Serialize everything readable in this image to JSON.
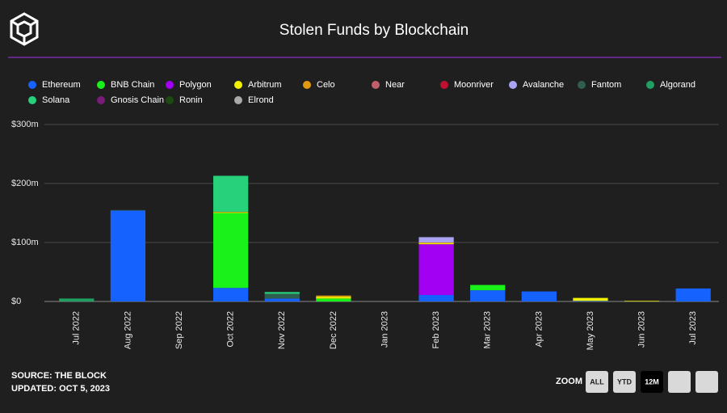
{
  "chart_data": {
    "type": "bar",
    "stacked": true,
    "title": "Stolen Funds by Blockchain",
    "categories": [
      "Jul 2022",
      "Aug 2022",
      "Sep 2022",
      "Oct 2022",
      "Nov 2022",
      "Dec 2022",
      "Jan 2023",
      "Feb 2023",
      "Mar 2023",
      "Apr 2023",
      "May 2023",
      "Jun 2023",
      "Jul 2023"
    ],
    "series": [
      {
        "name": "Ethereum",
        "color": "#1662ff",
        "values": [
          0,
          154,
          0,
          23,
          5,
          0,
          0,
          11,
          19,
          17,
          1,
          0,
          22
        ]
      },
      {
        "name": "BNB Chain",
        "color": "#1af01a",
        "values": [
          0,
          0,
          0,
          127,
          0,
          5,
          0,
          0,
          9,
          0,
          0,
          0,
          0
        ]
      },
      {
        "name": "Polygon",
        "color": "#a200f2",
        "values": [
          0,
          0,
          0,
          0,
          0,
          0,
          0,
          86,
          0,
          0,
          0,
          0,
          0
        ]
      },
      {
        "name": "Arbitrum",
        "color": "#f2f200",
        "values": [
          0,
          0,
          0,
          1,
          0,
          3,
          0,
          2,
          0,
          0,
          5,
          1,
          0
        ]
      },
      {
        "name": "Celo",
        "color": "#e09a10",
        "values": [
          0,
          0,
          0,
          1,
          0,
          2,
          0,
          1,
          0,
          0,
          0,
          0,
          0
        ]
      },
      {
        "name": "Near",
        "color": "#c25d6b",
        "values": [
          0,
          0,
          0,
          0,
          0,
          0,
          0,
          0,
          0,
          0,
          0,
          0,
          0
        ]
      },
      {
        "name": "Moonriver",
        "color": "#c01030",
        "values": [
          0,
          0,
          0,
          0,
          0,
          0,
          0,
          0,
          0,
          0,
          0,
          0,
          0
        ]
      },
      {
        "name": "Avalanche",
        "color": "#aaa2f2",
        "values": [
          0,
          0,
          0,
          0,
          0,
          0,
          0,
          9,
          0,
          0,
          0,
          0,
          0
        ]
      },
      {
        "name": "Fantom",
        "color": "#2f5e4e",
        "values": [
          0,
          1,
          0,
          0,
          8,
          0,
          0,
          0,
          0,
          0,
          0,
          0,
          0
        ]
      },
      {
        "name": "Algorand",
        "color": "#1fa062",
        "values": [
          5,
          0,
          0,
          0,
          0,
          0,
          0,
          0,
          0,
          0,
          0,
          0,
          0
        ]
      },
      {
        "name": "Solana",
        "color": "#27d07b",
        "values": [
          0,
          0,
          0,
          61,
          3,
          0,
          0,
          0,
          0,
          0,
          0,
          0,
          0
        ]
      },
      {
        "name": "Gnosis Chain",
        "color": "#7a1a7a",
        "values": [
          0,
          0,
          0,
          0,
          0,
          0,
          0,
          0,
          0,
          0,
          0,
          0,
          0
        ]
      },
      {
        "name": "Ronin",
        "color": "#1c4a12",
        "values": [
          0,
          0,
          0,
          0,
          0,
          0,
          0,
          0,
          0,
          0,
          0,
          0,
          0
        ]
      },
      {
        "name": "Elrond",
        "color": "#a9a9a9",
        "values": [
          0,
          0,
          0,
          0,
          0,
          0,
          0,
          0,
          0,
          0,
          0,
          0,
          0
        ]
      }
    ],
    "ylim": [
      0,
      300
    ],
    "yticks": [
      {
        "value": 0,
        "label": "$0"
      },
      {
        "value": 100,
        "label": "$100m"
      },
      {
        "value": 200,
        "label": "$200m"
      },
      {
        "value": 300,
        "label": "$300m"
      }
    ],
    "grid": true
  },
  "footer": {
    "source": "SOURCE: THE BLOCK",
    "updated": "UPDATED: OCT 5, 2023"
  },
  "zoom": {
    "label": "ZOOM",
    "buttons": [
      "ALL",
      "YTD",
      "12M"
    ],
    "selected": 2
  }
}
